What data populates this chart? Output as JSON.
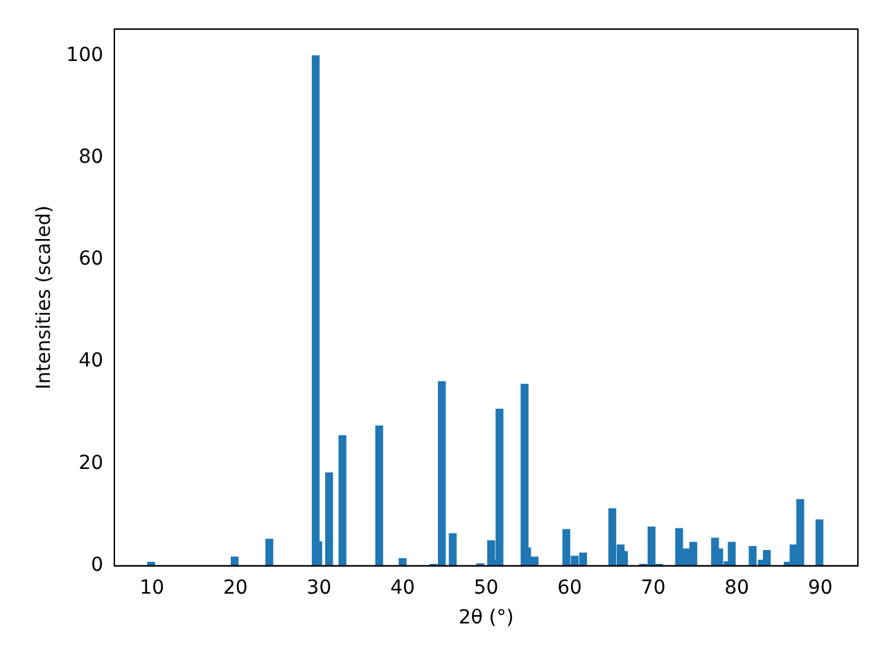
{
  "chart_data": {
    "type": "bar",
    "xlabel": "2θ (°)",
    "ylabel": "Intensities (scaled)",
    "x": [
      9.9,
      19.9,
      24.05,
      29.6,
      29.9,
      31.2,
      32.8,
      37.2,
      40.0,
      43.7,
      44.7,
      46.0,
      49.3,
      50.6,
      51.1,
      51.6,
      54.6,
      54.9,
      55.8,
      59.6,
      60.6,
      61.6,
      65.1,
      66.1,
      66.5,
      68.8,
      69.8,
      70.7,
      73.1,
      73.9,
      74.8,
      77.4,
      77.9,
      78.9,
      79.4,
      81.9,
      83.0,
      83.6,
      86.1,
      86.8,
      87.6,
      89.9
    ],
    "values": [
      0.7,
      1.7,
      5.2,
      100,
      4.7,
      18.2,
      25.5,
      27.4,
      1.4,
      0.3,
      36.1,
      6.3,
      0.4,
      4.9,
      1.1,
      30.7,
      35.6,
      3.5,
      1.7,
      7.1,
      1.9,
      2.5,
      11.2,
      4.1,
      2.8,
      0.3,
      7.6,
      0.3,
      7.3,
      3.3,
      4.6,
      5.4,
      3.3,
      0.8,
      4.6,
      3.8,
      1.1,
      3.0,
      0.7,
      4.1,
      13.0,
      9.0
    ],
    "color": "#1f77b4",
    "xlim": [
      5.5,
      94.5
    ],
    "xticks": [
      10,
      20,
      30,
      40,
      50,
      60,
      70,
      80,
      90
    ],
    "ylim": [
      0,
      105.2
    ],
    "yticks": [
      0,
      20,
      40,
      60,
      80,
      100
    ]
  }
}
